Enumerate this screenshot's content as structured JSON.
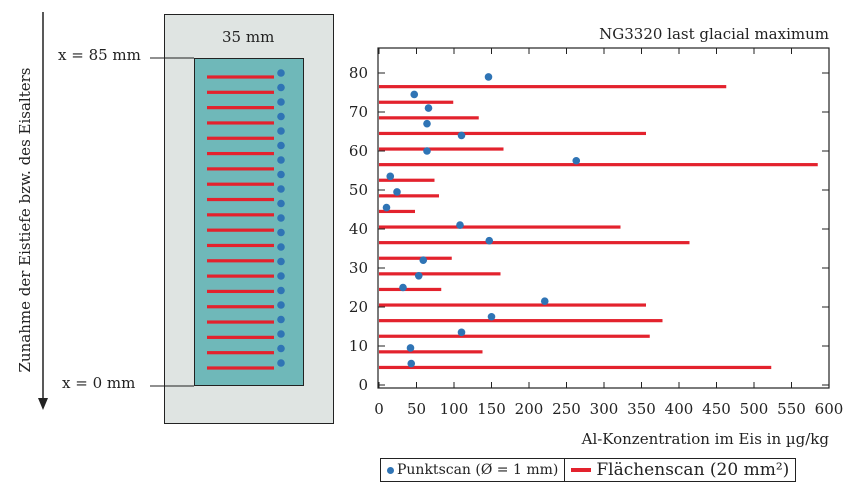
{
  "figure": {
    "side_label": "Zunahme der Eistiefe bzw. des Eisalters",
    "core_width_label": "35 mm",
    "top_depth_label": "x = 85 mm",
    "bottom_depth_label": "x = 0 mm"
  },
  "legend": {
    "point_scan": "Punktscan (Ø = 1 mm)",
    "area_scan": "Flächenscan (20 mm²)"
  },
  "colors": {
    "bar": "#e3222d",
    "point": "#2f74b5",
    "core_fill": "#6fb8b9",
    "core_frame": "#dfe4e2"
  },
  "chart_data": {
    "type": "bar",
    "orientation": "horizontal",
    "title": "NG3320 last glacial maximum",
    "xlabel": "Al-Konzentration im Eis in µg/kg",
    "ylabel": "",
    "xlim": [
      0,
      600
    ],
    "ylim": [
      0,
      85
    ],
    "x_ticks": [
      0,
      50,
      100,
      150,
      200,
      250,
      300,
      350,
      400,
      450,
      500,
      550,
      600
    ],
    "y_ticks": [
      0,
      10,
      20,
      30,
      40,
      50,
      60,
      70,
      80
    ],
    "grid": false,
    "legend_position": "bottom",
    "series": [
      {
        "name": "Flächenscan (20 mm²)",
        "type": "bar",
        "y": [
          4.5,
          8.5,
          12.5,
          16.5,
          20.5,
          24.5,
          28.5,
          32.5,
          36.5,
          40.5,
          44.5,
          48.5,
          52.5,
          56.5,
          60.5,
          64.5,
          68.5,
          72.5,
          76.5,
          80.5
        ],
        "values": [
          523,
          138,
          361,
          378,
          356,
          83,
          162,
          97,
          414,
          322,
          48,
          80,
          74,
          585,
          166,
          356,
          133,
          99,
          463,
          0
        ]
      },
      {
        "name": "Punktscan (Ø = 1 mm)",
        "type": "scatter",
        "y": [
          5.5,
          9.5,
          13.5,
          17.5,
          21.5,
          25,
          28,
          32,
          37,
          41,
          45.5,
          49.5,
          53.5,
          57.5,
          60,
          64,
          67,
          71,
          74.5,
          79
        ],
        "values": [
          43,
          42,
          110,
          150,
          221,
          32,
          53,
          59,
          147,
          108,
          10,
          24,
          15,
          263,
          64,
          110,
          64,
          66,
          47,
          146
        ]
      }
    ]
  }
}
